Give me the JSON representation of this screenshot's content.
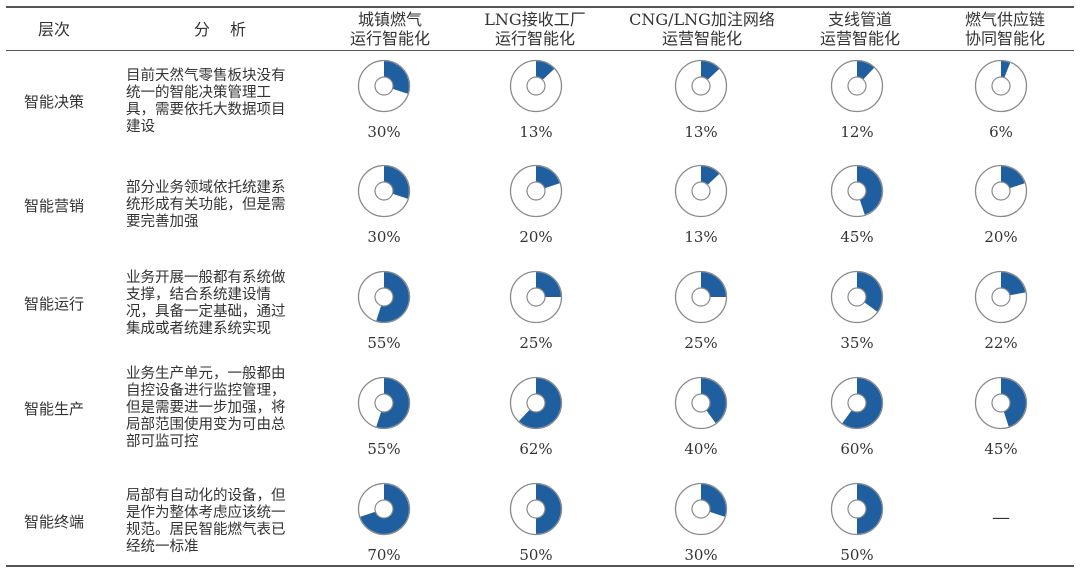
{
  "header": {
    "level": "层次",
    "analysis": "分　析",
    "columns": [
      [
        "城镇燃气",
        "运行智能化"
      ],
      [
        "LNG接收工厂",
        "运行智能化"
      ],
      [
        "CNG/LNG加注网络",
        "运营智能化"
      ],
      [
        "支线管道",
        "运营智能化"
      ],
      [
        "燃气供应链",
        "协同智能化"
      ]
    ]
  },
  "colors": {
    "fill": "#1f5fa0",
    "ring": "#8a8a8a",
    "rule": "#555555"
  },
  "chart_data": {
    "type": "table",
    "columns": [
      "城镇燃气运行智能化",
      "LNG接收工厂运行智能化",
      "CNG/LNG加注网络运营智能化",
      "支线管道运营智能化",
      "燃气供应链协同智能化"
    ],
    "rows": [
      {
        "level": "智能决策",
        "analysis": [
          "目前天然气零售板块没有",
          "统一的智能决策管理工",
          "具，需要依托大数据项目",
          "建设"
        ],
        "values": [
          30,
          13,
          13,
          12,
          6
        ],
        "labels": [
          "30%",
          "13%",
          "13%",
          "12%",
          "6%"
        ]
      },
      {
        "level": "智能营销",
        "analysis": [
          "部分业务领域依托统建系",
          "统形成有关功能，但是需",
          "要完善加强"
        ],
        "values": [
          30,
          20,
          13,
          45,
          20
        ],
        "labels": [
          "30%",
          "20%",
          "13%",
          "45%",
          "20%"
        ]
      },
      {
        "level": "智能运行",
        "analysis": [
          "业务开展一般都有系统做",
          "支撑，结合系统建设情",
          "况，具备一定基础，通过",
          "集成或者统建系统实现"
        ],
        "values": [
          55,
          25,
          25,
          35,
          22
        ],
        "labels": [
          "55%",
          "25%",
          "25%",
          "35%",
          "22%"
        ]
      },
      {
        "level": "智能生产",
        "analysis": [
          "业务生产单元，一般都由",
          "自控设备进行监控管理，",
          "但是需要进一步加强，将",
          "局部范围使用变为可由总",
          "部可监可控"
        ],
        "values": [
          55,
          62,
          40,
          60,
          45
        ],
        "labels": [
          "55%",
          "62%",
          "40%",
          "60%",
          "45%"
        ]
      },
      {
        "level": "智能终端",
        "analysis": [
          "局部有自动化的设备，但",
          "是作为整体考虑应该统一",
          "规范。居民智能燃气表已",
          "经统一标准"
        ],
        "values": [
          70,
          50,
          30,
          50,
          null
        ],
        "labels": [
          "70%",
          "50%",
          "30%",
          "50%",
          "—"
        ]
      }
    ]
  }
}
